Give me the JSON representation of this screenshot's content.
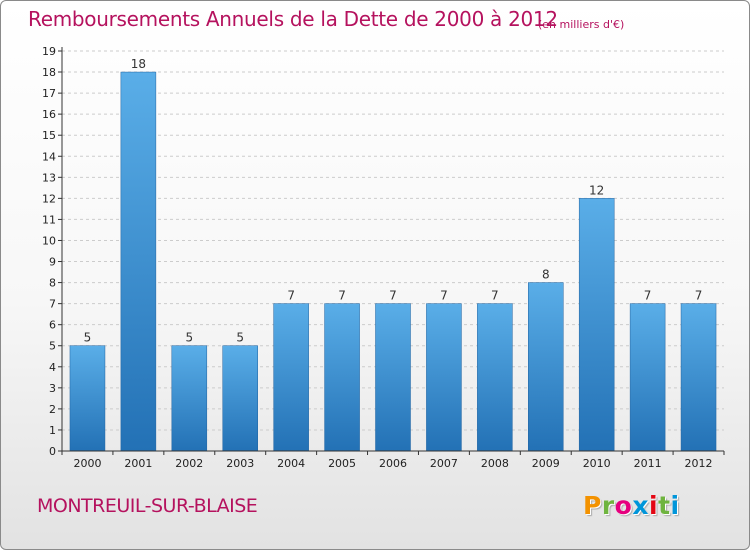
{
  "title": "Remboursements Annuels de la Dette de 2000 à 2012",
  "subtitle": "(en milliers d'€)",
  "commune": "MONTREUIL-SUR-BLAISE",
  "logo": {
    "letters": [
      "P",
      "r",
      "o",
      "x",
      "i",
      "t",
      "i"
    ]
  },
  "colors": {
    "title": "#b5125e",
    "bar_top": "#5aaee8",
    "bar_bottom": "#2371b5",
    "grid": "#cccccc"
  },
  "chart_data": {
    "type": "bar",
    "title": "Remboursements Annuels de la Dette de 2000 à 2012",
    "subtitle": "(en milliers d'€)",
    "xlabel": "",
    "ylabel": "",
    "categories": [
      "2000",
      "2001",
      "2002",
      "2003",
      "2004",
      "2005",
      "2006",
      "2007",
      "2008",
      "2009",
      "2010",
      "2011",
      "2012"
    ],
    "values": [
      5,
      18,
      5,
      5,
      7,
      7,
      7,
      7,
      7,
      8,
      12,
      7,
      7
    ],
    "ylim": [
      0,
      19
    ],
    "yticks": [
      0,
      1,
      2,
      3,
      4,
      5,
      6,
      7,
      8,
      9,
      10,
      11,
      12,
      13,
      14,
      15,
      16,
      17,
      18,
      19
    ],
    "grid": true,
    "data_labels": true
  }
}
